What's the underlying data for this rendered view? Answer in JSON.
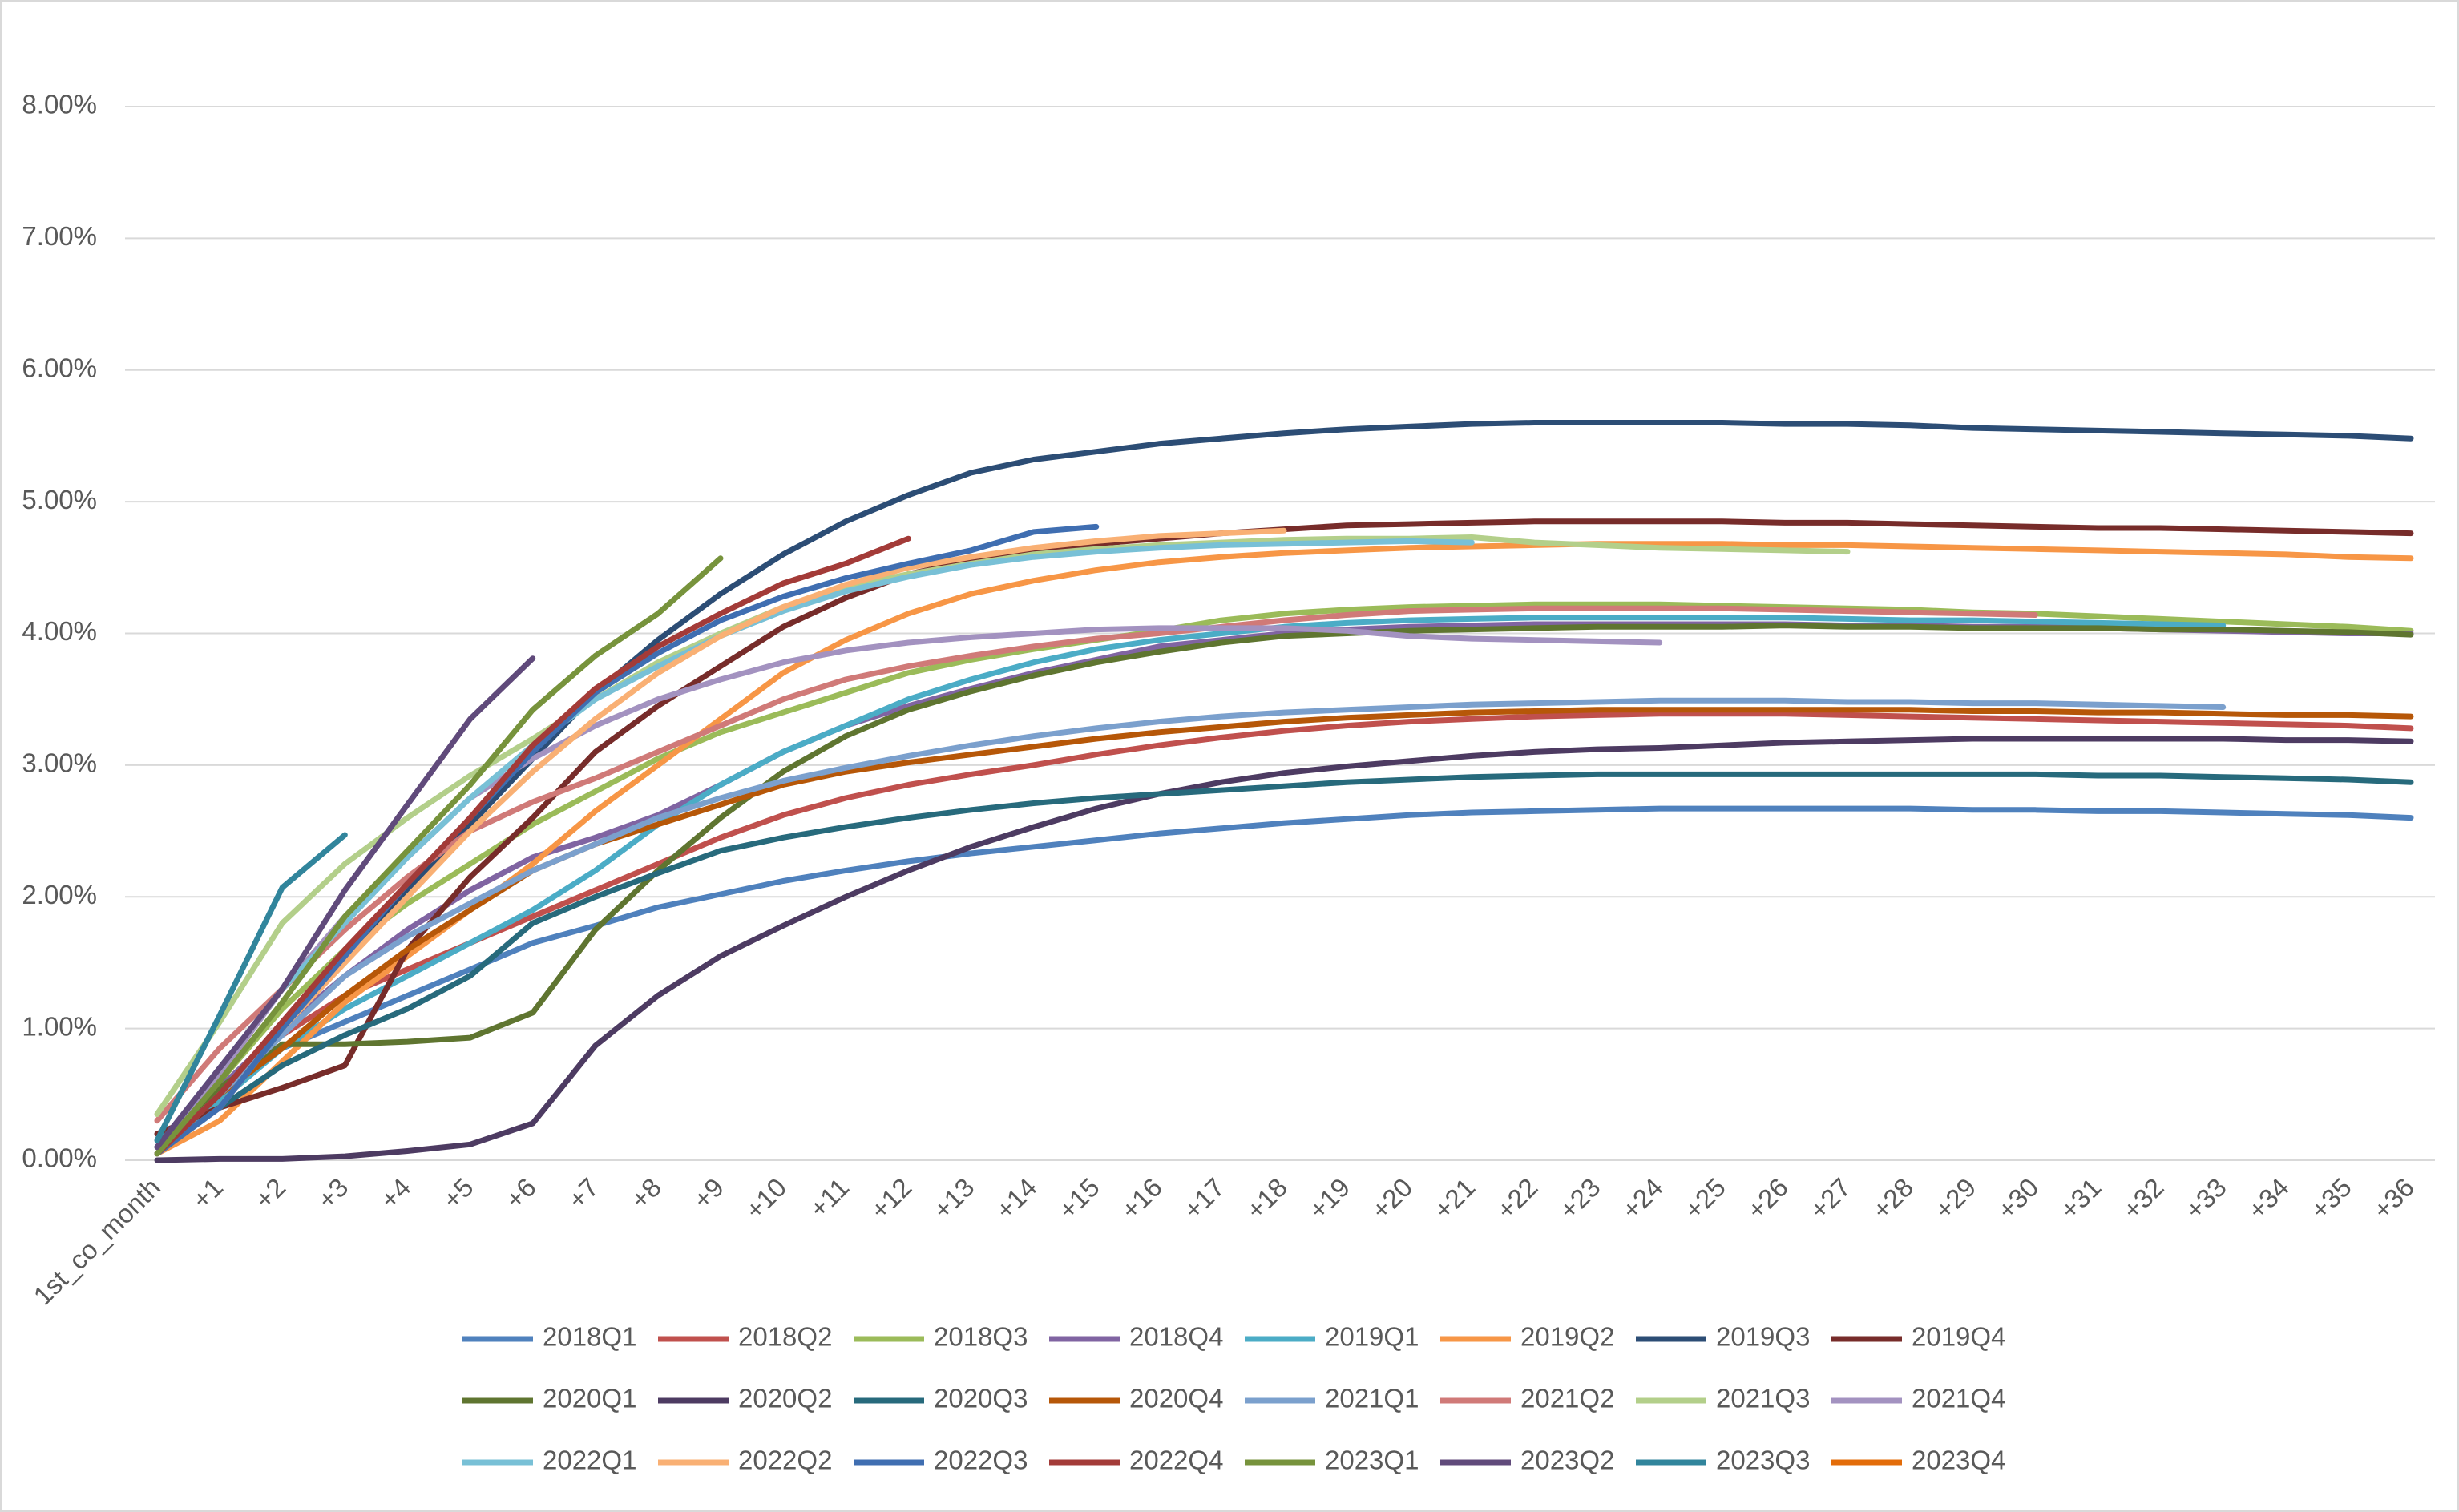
{
  "chart_data": {
    "type": "line",
    "categories": [
      "1st_co_month",
      "+1",
      "+2",
      "+3",
      "+4",
      "+5",
      "+6",
      "+7",
      "+8",
      "+9",
      "+10",
      "+11",
      "+12",
      "+13",
      "+14",
      "+15",
      "+16",
      "+17",
      "+18",
      "+19",
      "+20",
      "+21",
      "+22",
      "+23",
      "+24",
      "+25",
      "+26",
      "+27",
      "+28",
      "+29",
      "+30",
      "+31",
      "+32",
      "+33",
      "+34",
      "+35",
      "+36"
    ],
    "ylim": [
      0,
      8
    ],
    "yticks": [
      {
        "value": 0,
        "label": "0.00%"
      },
      {
        "value": 1,
        "label": "1.00%"
      },
      {
        "value": 2,
        "label": "2.00%"
      },
      {
        "value": 3,
        "label": "3.00%"
      },
      {
        "value": 4,
        "label": "4.00%"
      },
      {
        "value": 5,
        "label": "5.00%"
      },
      {
        "value": 6,
        "label": "6.00%"
      },
      {
        "value": 7,
        "label": "7.00%"
      },
      {
        "value": 8,
        "label": "8.00%"
      }
    ],
    "grid": true,
    "legend": "bottom",
    "series": [
      {
        "name": "2018Q1",
        "color": "#4f81bd",
        "values": [
          0.05,
          0.5,
          0.85,
          1.05,
          1.25,
          1.45,
          1.65,
          1.78,
          1.92,
          2.02,
          2.12,
          2.2,
          2.27,
          2.33,
          2.38,
          2.43,
          2.48,
          2.52,
          2.56,
          2.59,
          2.62,
          2.64,
          2.65,
          2.66,
          2.67,
          2.67,
          2.67,
          2.67,
          2.67,
          2.66,
          2.66,
          2.65,
          2.65,
          2.64,
          2.63,
          2.62,
          2.6
        ]
      },
      {
        "name": "2018Q2",
        "color": "#c0504d",
        "values": [
          0.05,
          0.55,
          0.95,
          1.25,
          1.45,
          1.65,
          1.85,
          2.05,
          2.25,
          2.45,
          2.62,
          2.75,
          2.85,
          2.93,
          3.0,
          3.08,
          3.15,
          3.21,
          3.26,
          3.3,
          3.33,
          3.35,
          3.37,
          3.38,
          3.39,
          3.39,
          3.39,
          3.38,
          3.37,
          3.36,
          3.35,
          3.34,
          3.33,
          3.32,
          3.31,
          3.3,
          3.28
        ]
      },
      {
        "name": "2018Q3",
        "color": "#9bbb59",
        "values": [
          0.1,
          0.6,
          1.15,
          1.6,
          1.95,
          2.25,
          2.55,
          2.8,
          3.05,
          3.25,
          3.4,
          3.55,
          3.7,
          3.8,
          3.88,
          3.95,
          4.02,
          4.1,
          4.15,
          4.18,
          4.2,
          4.21,
          4.22,
          4.22,
          4.22,
          4.21,
          4.2,
          4.19,
          4.18,
          4.16,
          4.15,
          4.13,
          4.11,
          4.09,
          4.07,
          4.05,
          4.02
        ]
      },
      {
        "name": "2018Q4",
        "color": "#8064a2",
        "values": [
          0.05,
          0.55,
          1.0,
          1.4,
          1.75,
          2.05,
          2.3,
          2.45,
          2.62,
          2.85,
          3.1,
          3.3,
          3.45,
          3.58,
          3.7,
          3.8,
          3.9,
          3.95,
          4.0,
          4.03,
          4.05,
          4.06,
          4.07,
          4.07,
          4.07,
          4.07,
          4.07,
          4.06,
          4.06,
          4.05,
          4.05,
          4.04,
          4.03,
          4.02,
          4.01,
          4.0,
          4.0
        ]
      },
      {
        "name": "2019Q1",
        "color": "#4bacc6",
        "values": [
          0.05,
          0.45,
          0.85,
          1.15,
          1.4,
          1.65,
          1.9,
          2.2,
          2.55,
          2.85,
          3.1,
          3.3,
          3.5,
          3.65,
          3.78,
          3.88,
          3.95,
          4.0,
          4.05,
          4.08,
          4.1,
          4.11,
          4.12,
          4.12,
          4.12,
          4.12,
          4.12,
          4.11,
          4.1,
          4.1,
          4.09,
          4.08,
          4.07,
          4.06,
          null,
          null,
          null
        ]
      },
      {
        "name": "2019Q2",
        "color": "#f79646",
        "values": [
          0.05,
          0.3,
          0.75,
          1.2,
          1.55,
          1.9,
          2.25,
          2.65,
          3.0,
          3.35,
          3.7,
          3.95,
          4.15,
          4.3,
          4.4,
          4.48,
          4.54,
          4.58,
          4.61,
          4.63,
          4.65,
          4.66,
          4.67,
          4.68,
          4.68,
          4.68,
          4.67,
          4.67,
          4.66,
          4.65,
          4.64,
          4.63,
          4.62,
          4.61,
          4.6,
          4.58,
          4.57
        ]
      },
      {
        "name": "2019Q3",
        "color": "#2c4d75",
        "values": [
          0.05,
          0.5,
          1.0,
          1.55,
          2.05,
          2.55,
          3.05,
          3.55,
          3.95,
          4.3,
          4.6,
          4.85,
          5.05,
          5.22,
          5.32,
          5.38,
          5.44,
          5.48,
          5.52,
          5.55,
          5.57,
          5.59,
          5.6,
          5.6,
          5.6,
          5.6,
          5.59,
          5.59,
          5.58,
          5.56,
          5.55,
          5.54,
          5.53,
          5.52,
          5.51,
          5.5,
          5.48
        ]
      },
      {
        "name": "2019Q4",
        "color": "#772c2a",
        "values": [
          0.2,
          0.4,
          0.55,
          0.72,
          1.6,
          2.15,
          2.6,
          3.1,
          3.45,
          3.75,
          4.05,
          4.27,
          4.45,
          4.55,
          4.63,
          4.68,
          4.72,
          4.76,
          4.79,
          4.82,
          4.83,
          4.84,
          4.85,
          4.85,
          4.85,
          4.85,
          4.84,
          4.84,
          4.83,
          4.82,
          4.81,
          4.8,
          4.8,
          4.79,
          4.78,
          4.77,
          4.76
        ]
      },
      {
        "name": "2020Q1",
        "color": "#5f7530",
        "values": [
          0.05,
          0.55,
          0.88,
          0.88,
          0.9,
          0.93,
          1.12,
          1.75,
          2.2,
          2.6,
          2.95,
          3.22,
          3.42,
          3.56,
          3.68,
          3.78,
          3.86,
          3.93,
          3.98,
          4.0,
          4.02,
          4.03,
          4.04,
          4.05,
          4.05,
          4.05,
          4.06,
          4.05,
          4.05,
          4.04,
          4.04,
          4.04,
          4.03,
          4.03,
          4.02,
          4.01,
          3.99
        ]
      },
      {
        "name": "2020Q2",
        "color": "#4d3b62",
        "values": [
          0.0,
          0.01,
          0.01,
          0.03,
          0.07,
          0.12,
          0.28,
          0.87,
          1.25,
          1.55,
          1.78,
          2.0,
          2.2,
          2.38,
          2.53,
          2.67,
          2.78,
          2.87,
          2.94,
          2.99,
          3.03,
          3.07,
          3.1,
          3.12,
          3.13,
          3.15,
          3.17,
          3.18,
          3.19,
          3.2,
          3.2,
          3.2,
          3.2,
          3.2,
          3.19,
          3.19,
          3.18
        ]
      },
      {
        "name": "2020Q3",
        "color": "#276a7c",
        "values": [
          0.05,
          0.4,
          0.72,
          0.95,
          1.15,
          1.4,
          1.8,
          2.0,
          2.18,
          2.35,
          2.45,
          2.53,
          2.6,
          2.66,
          2.71,
          2.75,
          2.78,
          2.81,
          2.84,
          2.87,
          2.89,
          2.91,
          2.92,
          2.93,
          2.93,
          2.93,
          2.93,
          2.93,
          2.93,
          2.93,
          2.93,
          2.92,
          2.92,
          2.91,
          2.9,
          2.89,
          2.87
        ]
      },
      {
        "name": "2020Q4",
        "color": "#b65708",
        "values": [
          0.05,
          0.5,
          0.85,
          1.25,
          1.6,
          1.9,
          2.2,
          2.4,
          2.55,
          2.7,
          2.85,
          2.95,
          3.02,
          3.08,
          3.14,
          3.2,
          3.25,
          3.29,
          3.33,
          3.36,
          3.38,
          3.4,
          3.41,
          3.42,
          3.42,
          3.42,
          3.42,
          3.42,
          3.42,
          3.41,
          3.41,
          3.4,
          3.4,
          3.39,
          3.38,
          3.38,
          3.37
        ]
      },
      {
        "name": "2021Q1",
        "color": "#7ba0cd",
        "values": [
          0.05,
          0.5,
          0.95,
          1.4,
          1.7,
          1.95,
          2.2,
          2.4,
          2.6,
          2.75,
          2.88,
          2.98,
          3.07,
          3.15,
          3.22,
          3.28,
          3.33,
          3.37,
          3.4,
          3.42,
          3.44,
          3.46,
          3.47,
          3.48,
          3.49,
          3.49,
          3.49,
          3.48,
          3.48,
          3.47,
          3.47,
          3.46,
          3.45,
          3.44,
          null,
          null,
          null
        ]
      },
      {
        "name": "2021Q2",
        "color": "#d07a78",
        "values": [
          0.3,
          0.85,
          1.3,
          1.75,
          2.15,
          2.5,
          2.72,
          2.9,
          3.1,
          3.3,
          3.5,
          3.65,
          3.75,
          3.83,
          3.9,
          3.96,
          4.0,
          4.05,
          4.1,
          4.14,
          4.17,
          4.18,
          4.19,
          4.19,
          4.19,
          4.19,
          4.18,
          4.17,
          4.16,
          4.15,
          4.14,
          null,
          null,
          null,
          null,
          null,
          null
        ]
      },
      {
        "name": "2021Q3",
        "color": "#b3cf8a",
        "values": [
          0.35,
          1.05,
          1.8,
          2.25,
          2.6,
          2.92,
          3.2,
          3.5,
          3.78,
          4.0,
          4.2,
          4.35,
          4.45,
          4.53,
          4.6,
          4.64,
          4.67,
          4.69,
          4.71,
          4.72,
          4.72,
          4.73,
          4.69,
          4.67,
          4.65,
          4.64,
          4.63,
          4.62,
          null,
          null,
          null,
          null,
          null,
          null,
          null,
          null,
          null
        ]
      },
      {
        "name": "2021Q4",
        "color": "#a392c0",
        "values": [
          0.05,
          0.65,
          1.3,
          1.85,
          2.3,
          2.75,
          3.05,
          3.3,
          3.5,
          3.65,
          3.78,
          3.87,
          3.93,
          3.97,
          4.0,
          4.03,
          4.04,
          4.04,
          4.04,
          4.02,
          3.98,
          3.96,
          3.95,
          3.94,
          3.93,
          null,
          null,
          null,
          null,
          null,
          null,
          null,
          null,
          null,
          null,
          null,
          null
        ]
      },
      {
        "name": "2022Q1",
        "color": "#78c0d6",
        "values": [
          0.1,
          0.7,
          1.3,
          1.8,
          2.3,
          2.75,
          3.15,
          3.5,
          3.75,
          3.98,
          4.17,
          4.32,
          4.43,
          4.52,
          4.58,
          4.62,
          4.65,
          4.67,
          4.68,
          4.69,
          4.7,
          4.69,
          null,
          null,
          null,
          null,
          null,
          null,
          null,
          null,
          null,
          null,
          null,
          null,
          null,
          null,
          null
        ]
      },
      {
        "name": "2022Q2",
        "color": "#f9b074",
        "values": [
          0.05,
          0.4,
          1.0,
          1.5,
          2.0,
          2.5,
          2.95,
          3.35,
          3.7,
          3.98,
          4.2,
          4.37,
          4.5,
          4.58,
          4.65,
          4.7,
          4.74,
          4.76,
          4.78,
          null,
          null,
          null,
          null,
          null,
          null,
          null,
          null,
          null,
          null,
          null,
          null,
          null,
          null,
          null,
          null,
          null,
          null
        ]
      },
      {
        "name": "2022Q3",
        "color": "#3f6eb1",
        "values": [
          0.05,
          0.4,
          1.0,
          1.55,
          2.1,
          2.6,
          3.1,
          3.55,
          3.85,
          4.1,
          4.28,
          4.42,
          4.53,
          4.63,
          4.77,
          4.81,
          null,
          null,
          null,
          null,
          null,
          null,
          null,
          null,
          null,
          null,
          null,
          null,
          null,
          null,
          null,
          null,
          null,
          null,
          null,
          null,
          null
        ]
      },
      {
        "name": "2022Q4",
        "color": "#a33b38",
        "values": [
          0.05,
          0.5,
          1.05,
          1.6,
          2.1,
          2.6,
          3.15,
          3.58,
          3.9,
          4.15,
          4.38,
          4.53,
          4.72,
          null,
          null,
          null,
          null,
          null,
          null,
          null,
          null,
          null,
          null,
          null,
          null,
          null,
          null,
          null,
          null,
          null,
          null,
          null,
          null,
          null,
          null,
          null,
          null
        ]
      },
      {
        "name": "2023Q1",
        "color": "#77933c",
        "values": [
          0.05,
          0.6,
          1.2,
          1.85,
          2.35,
          2.85,
          3.42,
          3.83,
          4.15,
          4.57,
          null,
          null,
          null,
          null,
          null,
          null,
          null,
          null,
          null,
          null,
          null,
          null,
          null,
          null,
          null,
          null,
          null,
          null,
          null,
          null,
          null,
          null,
          null,
          null,
          null,
          null,
          null
        ]
      },
      {
        "name": "2023Q2",
        "color": "#604a7b",
        "values": [
          0.1,
          0.7,
          1.3,
          2.05,
          2.7,
          3.35,
          3.81,
          null,
          null,
          null,
          null,
          null,
          null,
          null,
          null,
          null,
          null,
          null,
          null,
          null,
          null,
          null,
          null,
          null,
          null,
          null,
          null,
          null,
          null,
          null,
          null,
          null,
          null,
          null,
          null,
          null,
          null
        ]
      },
      {
        "name": "2023Q3",
        "color": "#31859c",
        "values": [
          0.15,
          1.1,
          2.07,
          2.47,
          null,
          null,
          null,
          null,
          null,
          null,
          null,
          null,
          null,
          null,
          null,
          null,
          null,
          null,
          null,
          null,
          null,
          null,
          null,
          null,
          null,
          null,
          null,
          null,
          null,
          null,
          null,
          null,
          null,
          null,
          null,
          null,
          null
        ]
      },
      {
        "name": "2023Q4",
        "color": "#e36c09",
        "values": [
          0.05,
          null,
          null,
          null,
          null,
          null,
          null,
          null,
          null,
          null,
          null,
          null,
          null,
          null,
          null,
          null,
          null,
          null,
          null,
          null,
          null,
          null,
          null,
          null,
          null,
          null,
          null,
          null,
          null,
          null,
          null,
          null,
          null,
          null,
          null,
          null,
          null
        ]
      }
    ]
  }
}
